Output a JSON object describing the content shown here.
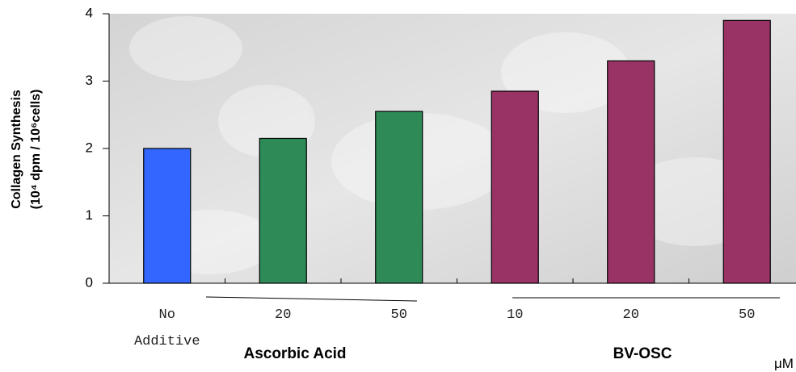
{
  "chart_data": {
    "type": "bar",
    "y_label": [
      "Collagen Synthesis",
      "(10⁴ dpm / 10⁶cells)"
    ],
    "categories": [
      "No Additive",
      "20",
      "50",
      "10",
      "20",
      "50"
    ],
    "values": [
      2.0,
      2.15,
      2.55,
      2.85,
      3.3,
      3.9
    ],
    "colors": [
      "#3366ff",
      "#2e8b57",
      "#2e8b57",
      "#993366",
      "#993366",
      "#993366"
    ],
    "groups": [
      "Ascorbic Acid",
      "BV-OSC"
    ],
    "unit": "μM",
    "ylim": [
      0,
      4
    ],
    "yticks": [
      0,
      1,
      2,
      3,
      4
    ],
    "grid": false
  }
}
